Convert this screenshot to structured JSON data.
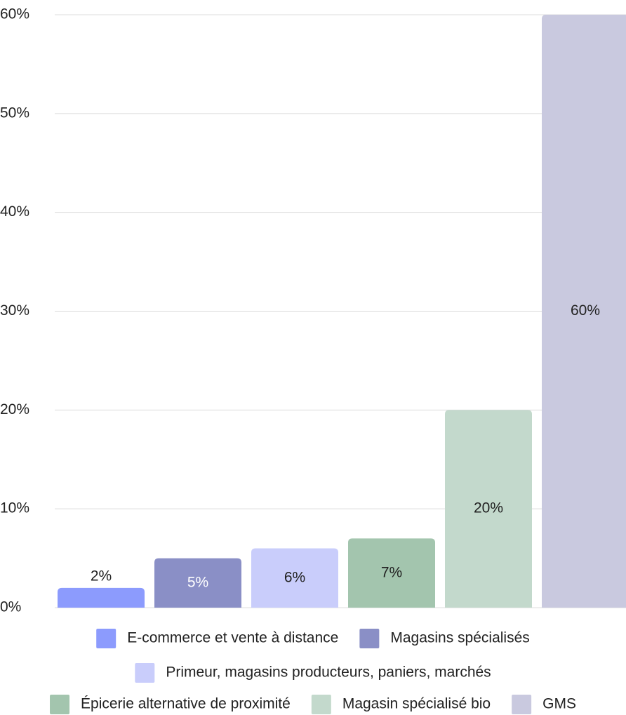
{
  "chart_data": {
    "type": "bar",
    "series": [
      {
        "name": "E-commerce et vente à distance",
        "color": "#8c9bfd",
        "values": [
          2
        ],
        "value_labels": [
          "2%"
        ]
      },
      {
        "name": "Magasins spécialisés",
        "color": "#8a8fc6",
        "values": [
          5
        ],
        "value_labels": [
          "5%"
        ]
      },
      {
        "name": "Primeur, magasins producteurs, paniers, marchés",
        "color": "#c9cdfb",
        "values": [
          6
        ],
        "value_labels": [
          "6%"
        ]
      },
      {
        "name": "Épicerie alternative de proximité",
        "color": "#a3c5ae",
        "values": [
          7
        ],
        "value_labels": [
          "7%"
        ]
      },
      {
        "name": "Magasin spécialisé bio",
        "color": "#c3d9cc",
        "values": [
          20
        ],
        "value_labels": [
          "20%"
        ]
      },
      {
        "name": "GMS",
        "color": "#c9c9df",
        "values": [
          60
        ],
        "value_labels": [
          "60%"
        ]
      }
    ],
    "ylim": [
      0,
      60
    ],
    "yticks": [
      {
        "value": 0,
        "label": "0%"
      },
      {
        "value": 10,
        "label": "10%"
      },
      {
        "value": 20,
        "label": "20%"
      },
      {
        "value": 30,
        "label": "30%"
      },
      {
        "value": 40,
        "label": "40%"
      },
      {
        "value": 50,
        "label": "50%"
      },
      {
        "value": 60,
        "label": "60%"
      }
    ],
    "grid": true
  }
}
